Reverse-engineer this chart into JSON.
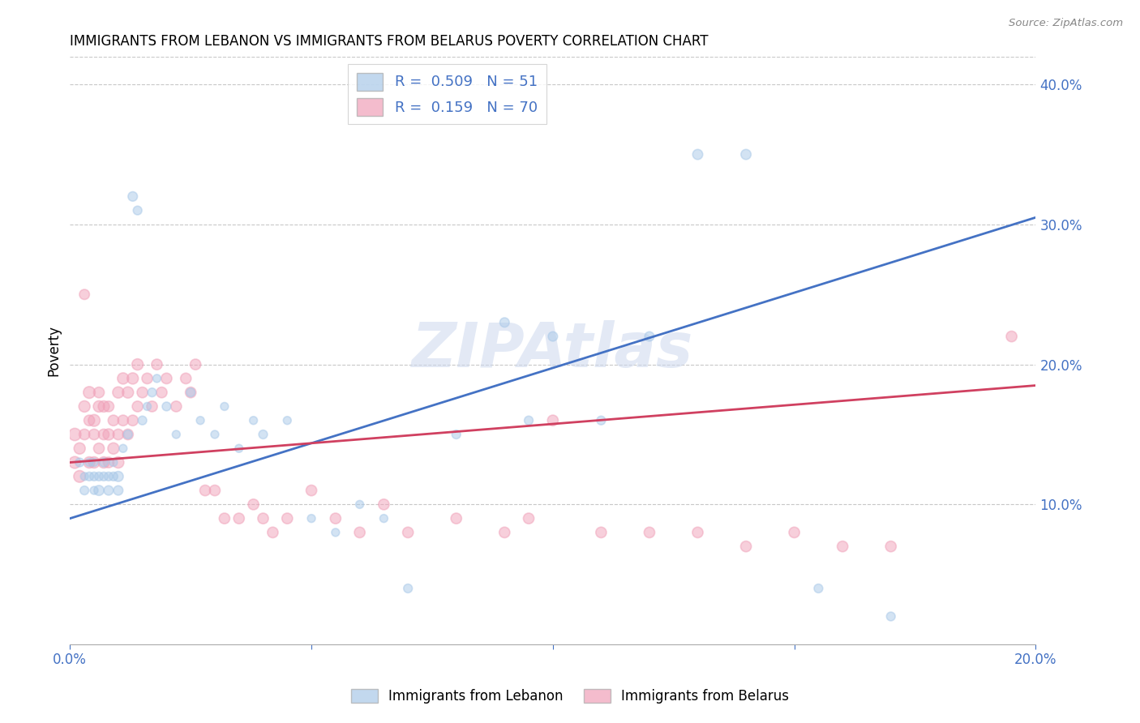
{
  "title": "IMMIGRANTS FROM LEBANON VS IMMIGRANTS FROM BELARUS POVERTY CORRELATION CHART",
  "source": "Source: ZipAtlas.com",
  "ylabel": "Poverty",
  "watermark": "ZIPAtlas",
  "background_color": "#ffffff",
  "axis_color": "#4472c4",
  "xlim": [
    0.0,
    0.2
  ],
  "ylim": [
    0.0,
    0.42
  ],
  "grid_color": "#c8c8c8",
  "legend1_R": "0.509",
  "legend1_N": "51",
  "legend2_R": "0.159",
  "legend2_N": "70",
  "lebanon_color": "#a8c8e8",
  "belarus_color": "#f0a0b8",
  "legend_label1": "Immigrants from Lebanon",
  "legend_label2": "Immigrants from Belarus",
  "lebanon_scatter_x": [
    0.002,
    0.003,
    0.003,
    0.004,
    0.004,
    0.005,
    0.005,
    0.005,
    0.006,
    0.006,
    0.007,
    0.007,
    0.008,
    0.008,
    0.009,
    0.009,
    0.01,
    0.01,
    0.011,
    0.012,
    0.013,
    0.014,
    0.015,
    0.016,
    0.017,
    0.018,
    0.02,
    0.022,
    0.025,
    0.027,
    0.03,
    0.032,
    0.035,
    0.038,
    0.04,
    0.045,
    0.05,
    0.055,
    0.06,
    0.065,
    0.07,
    0.08,
    0.09,
    0.095,
    0.1,
    0.11,
    0.12,
    0.13,
    0.14,
    0.155,
    0.17
  ],
  "lebanon_scatter_y": [
    0.13,
    0.12,
    0.11,
    0.13,
    0.12,
    0.11,
    0.12,
    0.13,
    0.12,
    0.11,
    0.12,
    0.13,
    0.11,
    0.12,
    0.13,
    0.12,
    0.11,
    0.12,
    0.14,
    0.15,
    0.32,
    0.31,
    0.16,
    0.17,
    0.18,
    0.19,
    0.17,
    0.15,
    0.18,
    0.16,
    0.15,
    0.17,
    0.14,
    0.16,
    0.15,
    0.16,
    0.09,
    0.08,
    0.1,
    0.09,
    0.04,
    0.15,
    0.23,
    0.16,
    0.22,
    0.16,
    0.22,
    0.35,
    0.35,
    0.04,
    0.02
  ],
  "lebanon_scatter_size": [
    60,
    50,
    60,
    50,
    60,
    50,
    60,
    50,
    60,
    80,
    60,
    60,
    70,
    60,
    50,
    60,
    70,
    80,
    50,
    60,
    70,
    60,
    60,
    50,
    60,
    50,
    60,
    50,
    60,
    50,
    50,
    50,
    50,
    50,
    60,
    50,
    50,
    50,
    50,
    50,
    60,
    60,
    70,
    60,
    70,
    60,
    70,
    80,
    80,
    60,
    60
  ],
  "belarus_scatter_x": [
    0.001,
    0.001,
    0.002,
    0.002,
    0.003,
    0.003,
    0.003,
    0.004,
    0.004,
    0.004,
    0.005,
    0.005,
    0.005,
    0.006,
    0.006,
    0.006,
    0.007,
    0.007,
    0.007,
    0.008,
    0.008,
    0.008,
    0.009,
    0.009,
    0.01,
    0.01,
    0.01,
    0.011,
    0.011,
    0.012,
    0.012,
    0.013,
    0.013,
    0.014,
    0.014,
    0.015,
    0.016,
    0.017,
    0.018,
    0.019,
    0.02,
    0.022,
    0.024,
    0.025,
    0.026,
    0.028,
    0.03,
    0.032,
    0.035,
    0.038,
    0.04,
    0.042,
    0.045,
    0.05,
    0.055,
    0.06,
    0.065,
    0.07,
    0.08,
    0.09,
    0.095,
    0.1,
    0.11,
    0.12,
    0.13,
    0.14,
    0.15,
    0.16,
    0.17,
    0.195
  ],
  "belarus_scatter_y": [
    0.13,
    0.15,
    0.14,
    0.12,
    0.15,
    0.17,
    0.25,
    0.13,
    0.16,
    0.18,
    0.13,
    0.15,
    0.16,
    0.14,
    0.17,
    0.18,
    0.13,
    0.15,
    0.17,
    0.13,
    0.15,
    0.17,
    0.14,
    0.16,
    0.13,
    0.15,
    0.18,
    0.16,
    0.19,
    0.15,
    0.18,
    0.16,
    0.19,
    0.17,
    0.2,
    0.18,
    0.19,
    0.17,
    0.2,
    0.18,
    0.19,
    0.17,
    0.19,
    0.18,
    0.2,
    0.11,
    0.11,
    0.09,
    0.09,
    0.1,
    0.09,
    0.08,
    0.09,
    0.11,
    0.09,
    0.08,
    0.1,
    0.08,
    0.09,
    0.08,
    0.09,
    0.16,
    0.08,
    0.08,
    0.08,
    0.07,
    0.08,
    0.07,
    0.07,
    0.22
  ],
  "belarus_scatter_size": [
    110,
    120,
    100,
    110,
    90,
    100,
    80,
    100,
    90,
    110,
    100,
    90,
    110,
    90,
    100,
    90,
    100,
    90,
    100,
    90,
    100,
    90,
    100,
    90,
    100,
    90,
    100,
    90,
    100,
    90,
    100,
    90,
    100,
    90,
    100,
    90,
    90,
    90,
    90,
    90,
    90,
    90,
    90,
    90,
    90,
    90,
    90,
    90,
    90,
    90,
    90,
    90,
    90,
    90,
    90,
    90,
    90,
    90,
    90,
    90,
    90,
    90,
    90,
    90,
    90,
    90,
    90,
    90,
    90,
    90
  ],
  "lebanon_line_x": [
    0.0,
    0.2
  ],
  "lebanon_line_y": [
    0.09,
    0.305
  ],
  "belarus_line_x": [
    0.0,
    0.2
  ],
  "belarus_line_y": [
    0.13,
    0.185
  ],
  "line_lebanon_color": "#4472c4",
  "line_belarus_color": "#d04060"
}
